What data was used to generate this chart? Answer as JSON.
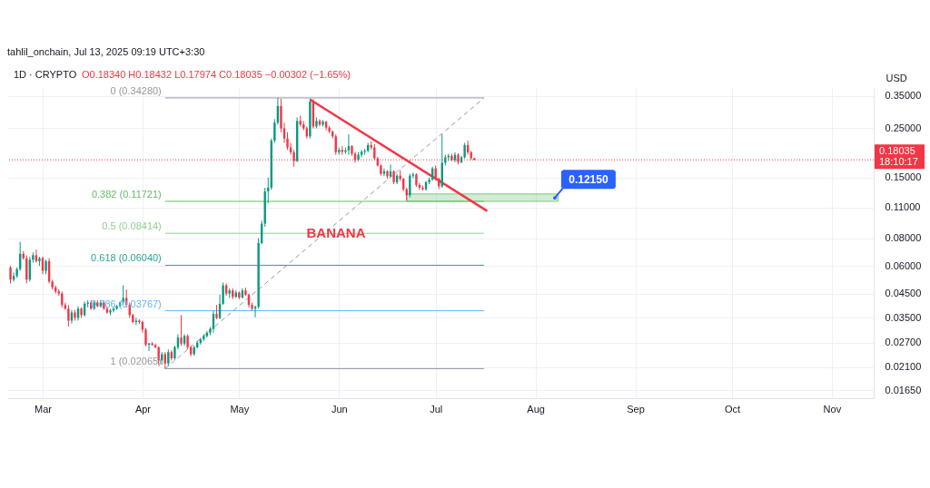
{
  "chart_data": {
    "type": "candlestick",
    "title": "1D · CRYPTO",
    "subtitle": "O0.18340 H0.18432 L0.17974 C0.18035 −0.00302 (−1.65%)",
    "ylabel": "USD",
    "annotations": [
      "tahlil_onchain, Jul 13, 2025 09:19 UTC+3:30",
      "BANANA",
      {
        "text": "0.12150",
        "x": "2025-08-07",
        "y": 0.1215
      }
    ],
    "xlim": [
      "2025-02-18",
      "2025-11-14"
    ],
    "ylim": [
      0.0152,
      0.38
    ],
    "log": true,
    "grid": true,
    "xticks": [
      {
        "value": "2025-03-01",
        "label": "Mar"
      },
      {
        "value": "2025-04-01",
        "label": "Apr"
      },
      {
        "value": "2025-05-01",
        "label": "May"
      },
      {
        "value": "2025-06-01",
        "label": "Jun"
      },
      {
        "value": "2025-07-01",
        "label": "Jul"
      },
      {
        "value": "2025-08-01",
        "label": "Aug"
      },
      {
        "value": "2025-09-01",
        "label": "Sep"
      },
      {
        "value": "2025-10-01",
        "label": "Oct"
      },
      {
        "value": "2025-11-01",
        "label": "Nov"
      }
    ],
    "yticks": [
      {
        "value": 0.35,
        "label": "0.35000"
      },
      {
        "value": 0.25,
        "label": "0.25000"
      },
      {
        "value": 0.15,
        "label": "0.15000"
      },
      {
        "value": 0.11,
        "label": "0.11000"
      },
      {
        "value": 0.08,
        "label": "0.08000"
      },
      {
        "value": 0.06,
        "label": "0.06000"
      },
      {
        "value": 0.045,
        "label": "0.04500"
      },
      {
        "value": 0.035,
        "label": "0.03500"
      },
      {
        "value": 0.027,
        "label": "0.02700"
      },
      {
        "value": 0.021,
        "label": "0.02100"
      },
      {
        "value": 0.0165,
        "label": "0.01650"
      }
    ],
    "ref_lines": [
      {
        "axis": "y",
        "value": 0.18035,
        "label": "0.18035\n18:10:17",
        "color": "#f23645",
        "line_style": "dotted"
      }
    ],
    "series": [
      {
        "type": "area",
        "x": [
          "2025-06-22",
          "2025-08-08"
        ],
        "values": [
          null,
          null
        ],
        "lower": [
          0.1172,
          0.1172
        ],
        "upper": [
          0.1265,
          0.1265
        ],
        "color": "#81c784"
      },
      {
        "type": "line",
        "name": "0 (0.34280)",
        "x": [
          "2025-04-08",
          "2025-07-16"
        ],
        "values": [
          0.3428,
          0.3428
        ],
        "color": "#9598a1"
      },
      {
        "type": "line",
        "name": "0.382 (0.11721)",
        "x": [
          "2025-04-08",
          "2025-07-16"
        ],
        "values": [
          0.11721,
          0.11721
        ],
        "color": "#66bb6a"
      },
      {
        "type": "line",
        "name": "0.5 (0.08414)",
        "x": [
          "2025-04-08",
          "2025-07-16"
        ],
        "values": [
          0.08414,
          0.08414
        ],
        "color": "#8fcf92"
      },
      {
        "type": "line",
        "name": "0.618 (0.06040)",
        "x": [
          "2025-04-08",
          "2025-07-16"
        ],
        "values": [
          0.0604,
          0.0604
        ],
        "color": "#26a69a"
      },
      {
        "type": "line",
        "name": "0.786 (0.03767)",
        "x": [
          "2025-04-08",
          "2025-07-16"
        ],
        "values": [
          0.03767,
          0.03767
        ],
        "color": "#64b5f6"
      },
      {
        "type": "line",
        "name": "1 (0.02065)",
        "x": [
          "2025-04-08",
          "2025-07-16"
        ],
        "values": [
          0.02065,
          0.02065
        ],
        "color": "#9598a1"
      },
      {
        "type": "line",
        "x": [
          "2025-04-08",
          "2025-07-16"
        ],
        "values": [
          0.02065,
          0.3428
        ],
        "color": "#9598a1",
        "line_style": "dashed"
      },
      {
        "type": "line",
        "x": [
          "2025-05-23",
          "2025-07-17"
        ],
        "values": [
          0.337,
          0.106
        ],
        "color": "#f23645"
      },
      {
        "x": [
          "2025-02-19",
          "2025-02-20",
          "2025-02-21",
          "2025-02-22",
          "2025-02-23",
          "2025-02-24",
          "2025-02-25",
          "2025-02-26",
          "2025-02-27",
          "2025-02-28",
          "2025-03-01",
          "2025-03-02",
          "2025-03-03",
          "2025-03-04",
          "2025-03-05",
          "2025-03-06",
          "2025-03-07",
          "2025-03-08",
          "2025-03-09",
          "2025-03-10",
          "2025-03-11",
          "2025-03-12",
          "2025-03-13",
          "2025-03-14",
          "2025-03-15",
          "2025-03-16",
          "2025-03-17",
          "2025-03-18",
          "2025-03-19",
          "2025-03-20",
          "2025-03-21",
          "2025-03-22",
          "2025-03-23",
          "2025-03-24",
          "2025-03-25",
          "2025-03-26",
          "2025-03-27",
          "2025-03-28",
          "2025-03-29",
          "2025-03-30",
          "2025-03-31",
          "2025-04-01",
          "2025-04-02",
          "2025-04-03",
          "2025-04-04",
          "2025-04-05",
          "2025-04-06",
          "2025-04-07",
          "2025-04-08",
          "2025-04-09",
          "2025-04-10",
          "2025-04-11",
          "2025-04-12",
          "2025-04-13",
          "2025-04-14",
          "2025-04-15",
          "2025-04-16",
          "2025-04-17",
          "2025-04-18",
          "2025-04-19",
          "2025-04-20",
          "2025-04-21",
          "2025-04-22",
          "2025-04-23",
          "2025-04-24",
          "2025-04-25",
          "2025-04-26",
          "2025-04-27",
          "2025-04-28",
          "2025-04-29",
          "2025-04-30",
          "2025-05-01",
          "2025-05-02",
          "2025-05-03",
          "2025-05-04",
          "2025-05-05",
          "2025-05-06",
          "2025-05-07",
          "2025-05-08",
          "2025-05-09",
          "2025-05-10",
          "2025-05-11",
          "2025-05-12",
          "2025-05-13",
          "2025-05-14",
          "2025-05-15",
          "2025-05-16",
          "2025-05-17",
          "2025-05-18",
          "2025-05-19",
          "2025-05-20",
          "2025-05-21",
          "2025-05-22",
          "2025-05-23",
          "2025-05-24",
          "2025-05-25",
          "2025-05-26",
          "2025-05-27",
          "2025-05-28",
          "2025-05-29",
          "2025-05-30",
          "2025-05-31",
          "2025-06-01",
          "2025-06-02",
          "2025-06-03",
          "2025-06-04",
          "2025-06-05",
          "2025-06-06",
          "2025-06-07",
          "2025-06-08",
          "2025-06-09",
          "2025-06-10",
          "2025-06-11",
          "2025-06-12",
          "2025-06-13",
          "2025-06-14",
          "2025-06-15",
          "2025-06-16",
          "2025-06-17",
          "2025-06-18",
          "2025-06-19",
          "2025-06-20",
          "2025-06-21",
          "2025-06-22",
          "2025-06-23",
          "2025-06-24",
          "2025-06-25",
          "2025-06-26",
          "2025-06-27",
          "2025-06-28",
          "2025-06-29",
          "2025-06-30",
          "2025-07-01",
          "2025-07-02",
          "2025-07-03",
          "2025-07-04",
          "2025-07-05",
          "2025-07-06",
          "2025-07-07",
          "2025-07-08",
          "2025-07-09",
          "2025-07-10",
          "2025-07-11",
          "2025-07-12",
          "2025-07-13"
        ],
        "ohlc": [
          [
            0.059,
            0.06,
            0.05,
            0.052
          ],
          [
            0.052,
            0.056,
            0.051,
            0.054
          ],
          [
            0.054,
            0.059,
            0.053,
            0.058
          ],
          [
            0.058,
            0.077,
            0.057,
            0.068
          ],
          [
            0.068,
            0.07,
            0.064,
            0.065
          ],
          [
            0.065,
            0.067,
            0.05,
            0.052
          ],
          [
            0.052,
            0.066,
            0.051,
            0.064
          ],
          [
            0.064,
            0.069,
            0.062,
            0.067
          ],
          [
            0.067,
            0.071,
            0.062,
            0.063
          ],
          [
            0.063,
            0.066,
            0.06,
            0.065
          ],
          [
            0.065,
            0.066,
            0.055,
            0.057
          ],
          [
            0.057,
            0.064,
            0.055,
            0.063
          ],
          [
            0.063,
            0.065,
            0.05,
            0.051
          ],
          [
            0.051,
            0.052,
            0.047,
            0.048
          ],
          [
            0.048,
            0.049,
            0.045,
            0.046
          ],
          [
            0.046,
            0.047,
            0.044,
            0.045
          ],
          [
            0.045,
            0.046,
            0.039,
            0.04
          ],
          [
            0.04,
            0.041,
            0.038,
            0.0385
          ],
          [
            0.0385,
            0.04,
            0.032,
            0.034
          ],
          [
            0.034,
            0.038,
            0.033,
            0.037
          ],
          [
            0.037,
            0.038,
            0.034,
            0.035
          ],
          [
            0.035,
            0.0395,
            0.034,
            0.0385
          ],
          [
            0.0385,
            0.039,
            0.035,
            0.036
          ],
          [
            0.036,
            0.0415,
            0.0355,
            0.0405
          ],
          [
            0.0405,
            0.042,
            0.039,
            0.041
          ],
          [
            0.041,
            0.042,
            0.038,
            0.0385
          ],
          [
            0.0385,
            0.042,
            0.038,
            0.041
          ],
          [
            0.041,
            0.042,
            0.039,
            0.0395
          ],
          [
            0.0395,
            0.042,
            0.039,
            0.041
          ],
          [
            0.041,
            0.0415,
            0.038,
            0.0385
          ],
          [
            0.0385,
            0.039,
            0.0365,
            0.037
          ],
          [
            0.037,
            0.0385,
            0.036,
            0.0378
          ],
          [
            0.0378,
            0.039,
            0.037,
            0.0385
          ],
          [
            0.0385,
            0.04,
            0.038,
            0.0395
          ],
          [
            0.0395,
            0.0415,
            0.039,
            0.041
          ],
          [
            0.041,
            0.049,
            0.04,
            0.043
          ],
          [
            0.043,
            0.047,
            0.039,
            0.04
          ],
          [
            0.04,
            0.041,
            0.035,
            0.036
          ],
          [
            0.036,
            0.0365,
            0.033,
            0.0335
          ],
          [
            0.0335,
            0.035,
            0.0325,
            0.034
          ],
          [
            0.034,
            0.0345,
            0.0328,
            0.0335
          ],
          [
            0.0335,
            0.034,
            0.03,
            0.031
          ],
          [
            0.031,
            0.0315,
            0.026,
            0.0265
          ],
          [
            0.0265,
            0.027,
            0.0248,
            0.0268
          ],
          [
            0.0268,
            0.0272,
            0.0262,
            0.0264
          ],
          [
            0.0264,
            0.0268,
            0.0255,
            0.0258
          ],
          [
            0.0258,
            0.026,
            0.0215,
            0.0225
          ],
          [
            0.0225,
            0.0245,
            0.0215,
            0.024
          ],
          [
            0.024,
            0.0245,
            0.02065,
            0.0218
          ],
          [
            0.0218,
            0.0252,
            0.0212,
            0.0245
          ],
          [
            0.0245,
            0.025,
            0.0225,
            0.023
          ],
          [
            0.023,
            0.0262,
            0.0226,
            0.0258
          ],
          [
            0.0258,
            0.0295,
            0.0252,
            0.0285
          ],
          [
            0.0285,
            0.036,
            0.0262,
            0.0268
          ],
          [
            0.0268,
            0.0295,
            0.0262,
            0.029
          ],
          [
            0.029,
            0.0295,
            0.0252,
            0.0258
          ],
          [
            0.0258,
            0.0262,
            0.0235,
            0.024
          ],
          [
            0.024,
            0.0262,
            0.0236,
            0.0258
          ],
          [
            0.0258,
            0.0275,
            0.0255,
            0.027
          ],
          [
            0.027,
            0.0285,
            0.0265,
            0.028
          ],
          [
            0.028,
            0.0295,
            0.0275,
            0.029
          ],
          [
            0.029,
            0.0305,
            0.0285,
            0.03
          ],
          [
            0.03,
            0.0318,
            0.0292,
            0.0312
          ],
          [
            0.0312,
            0.0375,
            0.03,
            0.0365
          ],
          [
            0.0365,
            0.04,
            0.0345,
            0.035
          ],
          [
            0.035,
            0.0446,
            0.0345,
            0.0405
          ],
          [
            0.0405,
            0.0505,
            0.04,
            0.049
          ],
          [
            0.049,
            0.05,
            0.044,
            0.045
          ],
          [
            0.045,
            0.0475,
            0.043,
            0.0465
          ],
          [
            0.0465,
            0.0475,
            0.0425,
            0.0435
          ],
          [
            0.0435,
            0.0465,
            0.043,
            0.0455
          ],
          [
            0.0455,
            0.046,
            0.0425,
            0.0432
          ],
          [
            0.0432,
            0.0475,
            0.0428,
            0.0465
          ],
          [
            0.0465,
            0.0478,
            0.044,
            0.0445
          ],
          [
            0.0445,
            0.045,
            0.039,
            0.04
          ],
          [
            0.04,
            0.041,
            0.0378,
            0.0385
          ],
          [
            0.0385,
            0.0398,
            0.0352,
            0.0392
          ],
          [
            0.0392,
            0.08,
            0.0385,
            0.076
          ],
          [
            0.076,
            0.096,
            0.075,
            0.093
          ],
          [
            0.093,
            0.135,
            0.09,
            0.13
          ],
          [
            0.13,
            0.15,
            0.115,
            0.135
          ],
          [
            0.135,
            0.225,
            0.132,
            0.22
          ],
          [
            0.22,
            0.275,
            0.215,
            0.265
          ],
          [
            0.265,
            0.3428,
            0.26,
            0.315
          ],
          [
            0.315,
            0.34,
            0.24,
            0.25
          ],
          [
            0.25,
            0.265,
            0.215,
            0.225
          ],
          [
            0.225,
            0.24,
            0.2,
            0.205
          ],
          [
            0.205,
            0.215,
            0.19,
            0.195
          ],
          [
            0.195,
            0.2,
            0.168,
            0.178
          ],
          [
            0.178,
            0.28,
            0.176,
            0.27
          ],
          [
            0.27,
            0.285,
            0.255,
            0.26
          ],
          [
            0.26,
            0.27,
            0.245,
            0.25
          ],
          [
            0.25,
            0.255,
            0.225,
            0.23
          ],
          [
            0.23,
            0.34,
            0.225,
            0.33
          ],
          [
            0.33,
            0.338,
            0.25,
            0.255
          ],
          [
            0.255,
            0.28,
            0.25,
            0.27
          ],
          [
            0.27,
            0.275,
            0.255,
            0.26
          ],
          [
            0.26,
            0.272,
            0.255,
            0.268
          ],
          [
            0.268,
            0.27,
            0.245,
            0.252
          ],
          [
            0.252,
            0.256,
            0.238,
            0.242
          ],
          [
            0.242,
            0.245,
            0.225,
            0.23
          ],
          [
            0.23,
            0.235,
            0.19,
            0.195
          ],
          [
            0.195,
            0.205,
            0.19,
            0.2
          ],
          [
            0.2,
            0.208,
            0.19,
            0.196
          ],
          [
            0.196,
            0.205,
            0.192,
            0.199
          ],
          [
            0.199,
            0.235,
            0.19,
            0.208
          ],
          [
            0.208,
            0.21,
            0.188,
            0.192
          ],
          [
            0.192,
            0.196,
            0.175,
            0.18
          ],
          [
            0.18,
            0.195,
            0.178,
            0.19
          ],
          [
            0.19,
            0.2,
            0.185,
            0.196
          ],
          [
            0.196,
            0.202,
            0.19,
            0.198
          ],
          [
            0.198,
            0.215,
            0.195,
            0.21
          ],
          [
            0.21,
            0.218,
            0.2,
            0.205
          ],
          [
            0.205,
            0.212,
            0.18,
            0.183
          ],
          [
            0.183,
            0.186,
            0.168,
            0.17
          ],
          [
            0.17,
            0.172,
            0.153,
            0.156
          ],
          [
            0.156,
            0.165,
            0.152,
            0.16
          ],
          [
            0.16,
            0.162,
            0.148,
            0.152
          ],
          [
            0.152,
            0.172,
            0.15,
            0.16
          ],
          [
            0.16,
            0.162,
            0.14,
            0.143
          ],
          [
            0.143,
            0.156,
            0.14,
            0.153
          ],
          [
            0.153,
            0.162,
            0.145,
            0.148
          ],
          [
            0.148,
            0.15,
            0.13,
            0.133
          ],
          [
            0.133,
            0.135,
            0.118,
            0.125
          ],
          [
            0.125,
            0.156,
            0.122,
            0.153
          ],
          [
            0.153,
            0.158,
            0.149,
            0.155
          ],
          [
            0.155,
            0.157,
            0.136,
            0.139
          ],
          [
            0.139,
            0.142,
            0.132,
            0.135
          ],
          [
            0.135,
            0.138,
            0.131,
            0.133
          ],
          [
            0.133,
            0.145,
            0.131,
            0.143
          ],
          [
            0.143,
            0.15,
            0.14,
            0.147
          ],
          [
            0.147,
            0.168,
            0.145,
            0.165
          ],
          [
            0.165,
            0.17,
            0.146,
            0.148
          ],
          [
            0.148,
            0.15,
            0.133,
            0.137
          ],
          [
            0.137,
            0.235,
            0.135,
            0.175
          ],
          [
            0.175,
            0.19,
            0.17,
            0.185
          ],
          [
            0.185,
            0.192,
            0.178,
            0.188
          ],
          [
            0.188,
            0.192,
            0.178,
            0.18
          ],
          [
            0.18,
            0.195,
            0.176,
            0.19
          ],
          [
            0.19,
            0.193,
            0.172,
            0.176
          ],
          [
            0.176,
            0.188,
            0.174,
            0.185
          ],
          [
            0.185,
            0.215,
            0.183,
            0.21
          ],
          [
            0.21,
            0.22,
            0.19,
            0.195
          ],
          [
            0.195,
            0.198,
            0.18,
            0.1834
          ],
          [
            0.1834,
            0.18432,
            0.17974,
            0.18035
          ]
        ],
        "colors": [
          "#f23645",
          "#089981",
          "#089981",
          "#089981",
          "#f23645",
          "#f23645",
          "#089981",
          "#089981",
          "#f23645",
          "#089981",
          "#f23645",
          "#089981",
          "#f23645",
          "#f23645",
          "#f23645",
          "#f23645",
          "#f23645",
          "#f23645",
          "#f23645",
          "#089981",
          "#f23645",
          "#089981",
          "#f23645",
          "#089981",
          "#089981",
          "#f23645",
          "#089981",
          "#f23645",
          "#089981",
          "#f23645",
          "#f23645",
          "#089981",
          "#089981",
          "#089981",
          "#089981",
          "#089981",
          "#f23645",
          "#f23645",
          "#f23645",
          "#089981",
          "#f23645",
          "#f23645",
          "#f23645",
          "#089981",
          "#f23645",
          "#f23645",
          "#f23645",
          "#089981",
          "#f23645",
          "#089981",
          "#f23645",
          "#089981",
          "#089981",
          "#f23645",
          "#089981",
          "#f23645",
          "#f23645",
          "#089981",
          "#089981",
          "#089981",
          "#089981",
          "#089981",
          "#089981",
          "#089981",
          "#f23645",
          "#089981",
          "#089981",
          "#f23645",
          "#089981",
          "#f23645",
          "#089981",
          "#f23645",
          "#089981",
          "#f23645",
          "#f23645",
          "#f23645",
          "#089981",
          "#089981",
          "#089981",
          "#089981",
          "#089981",
          "#089981",
          "#089981",
          "#089981",
          "#f23645",
          "#f23645",
          "#f23645",
          "#f23645",
          "#f23645",
          "#089981",
          "#f23645",
          "#f23645",
          "#f23645",
          "#089981",
          "#f23645",
          "#089981",
          "#f23645",
          "#089981",
          "#f23645",
          "#f23645",
          "#f23645",
          "#f23645",
          "#089981",
          "#f23645",
          "#089981",
          "#089981",
          "#f23645",
          "#f23645",
          "#089981",
          "#089981",
          "#089981",
          "#089981",
          "#f23645",
          "#f23645",
          "#f23645",
          "#f23645",
          "#089981",
          "#f23645",
          "#089981",
          "#f23645",
          "#089981",
          "#f23645",
          "#f23645",
          "#f23645",
          "#089981",
          "#089981",
          "#f23645",
          "#f23645",
          "#f23645",
          "#089981",
          "#089981",
          "#089981",
          "#f23645",
          "#f23645",
          "#089981",
          "#089981",
          "#089981",
          "#f23645",
          "#089981",
          "#f23645",
          "#089981",
          "#089981",
          "#f23645",
          "#f23645",
          "#f23645"
        ]
      }
    ]
  }
}
